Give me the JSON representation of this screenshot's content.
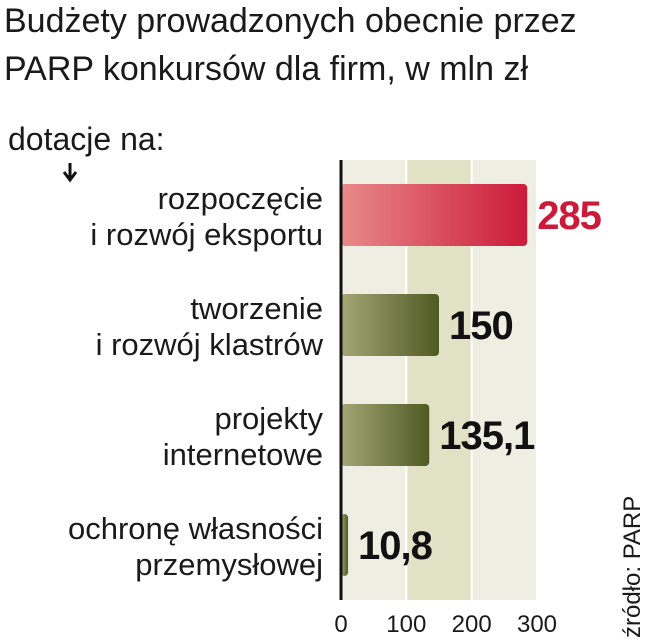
{
  "chart_data": {
    "type": "bar",
    "orientation": "horizontal",
    "title": [
      "Budżety prowadzonych obecnie przez",
      "PARP konkursów dla firm, w mln zł"
    ],
    "subtitle": "dotacje na:",
    "categories": [
      [
        "rozpoczęcie",
        "i rozwój eksportu"
      ],
      [
        "tworzenie",
        "i rozwój klastrów"
      ],
      [
        "projekty",
        "internetowe"
      ],
      [
        "ochronę własności",
        "przemysłowej"
      ]
    ],
    "values": [
      285,
      150,
      135.1,
      10.8
    ],
    "value_labels": [
      "285",
      "150",
      "135,1",
      "10,8"
    ],
    "colors": [
      "#cc1a3a",
      "#5a6428",
      "#5a6428",
      "#5a6428"
    ],
    "xlim": [
      0,
      300
    ],
    "xticks": [
      0,
      100,
      200,
      300
    ],
    "source": "źródło: PARP"
  }
}
